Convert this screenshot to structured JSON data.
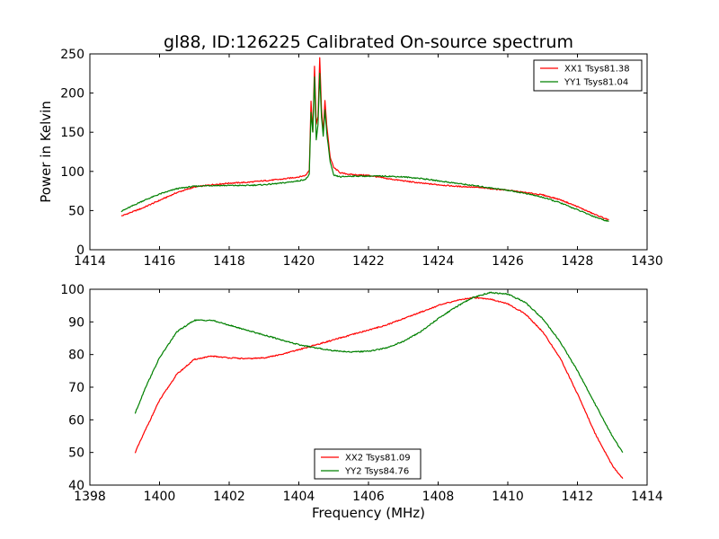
{
  "title": "gl88, ID:126225 Calibrated On-source spectrum",
  "ylabel_top": "Power in Kelvin",
  "xlabel_bottom": "Frequency (MHz)",
  "colors": {
    "red": "#ff0000",
    "green": "#008000",
    "axes": "#000000",
    "background": "#ffffff"
  },
  "chart_data": [
    {
      "type": "line",
      "title": "gl88, ID:126225 Calibrated On-source spectrum",
      "xlabel": "",
      "ylabel": "Power in Kelvin",
      "xlim": [
        1414,
        1430
      ],
      "ylim": [
        0,
        250
      ],
      "xticks": [
        "1414",
        "1416",
        "1418",
        "1420",
        "1422",
        "1424",
        "1426",
        "1428",
        "1430"
      ],
      "yticks": [
        "0",
        "50",
        "100",
        "150",
        "200",
        "250"
      ],
      "grid": false,
      "legend": "top-right",
      "series": [
        {
          "name": "XX1 Tsys81.38",
          "color": "#ff0000",
          "x": [
            1414.9,
            1415.5,
            1416.0,
            1416.5,
            1417.0,
            1417.5,
            1418.0,
            1418.5,
            1419.0,
            1419.5,
            1420.0,
            1420.2,
            1420.3,
            1420.35,
            1420.4,
            1420.45,
            1420.5,
            1420.55,
            1420.6,
            1420.65,
            1420.7,
            1420.75,
            1420.8,
            1420.9,
            1421.0,
            1421.2,
            1421.5,
            1422.0,
            1422.5,
            1423.0,
            1423.5,
            1424.0,
            1424.5,
            1425.0,
            1425.5,
            1426.0,
            1426.5,
            1427.0,
            1427.5,
            1428.0,
            1428.5,
            1428.9
          ],
          "y": [
            43,
            53,
            63,
            73,
            80,
            83,
            85,
            86,
            88,
            90,
            93,
            95,
            102,
            190,
            150,
            235,
            160,
            170,
            245,
            180,
            150,
            190,
            160,
            118,
            105,
            98,
            96,
            95,
            91,
            88,
            85,
            83,
            81,
            80,
            78,
            76,
            73,
            70,
            64,
            55,
            45,
            38
          ]
        },
        {
          "name": "YY1 Tsys81.04",
          "color": "#008000",
          "x": [
            1414.9,
            1415.5,
            1416.0,
            1416.5,
            1417.0,
            1417.5,
            1418.0,
            1418.5,
            1419.0,
            1419.5,
            1420.0,
            1420.2,
            1420.3,
            1420.35,
            1420.4,
            1420.45,
            1420.5,
            1420.55,
            1420.6,
            1420.65,
            1420.7,
            1420.75,
            1420.8,
            1420.9,
            1421.0,
            1421.2,
            1421.5,
            1422.0,
            1422.5,
            1423.0,
            1423.5,
            1424.0,
            1424.5,
            1425.0,
            1425.5,
            1426.0,
            1426.5,
            1427.0,
            1427.5,
            1428.0,
            1428.5,
            1428.9
          ],
          "y": [
            49,
            62,
            71,
            78,
            81,
            82,
            82,
            82,
            83,
            85,
            88,
            90,
            96,
            175,
            150,
            220,
            140,
            160,
            225,
            170,
            145,
            178,
            150,
            112,
            95,
            93,
            94,
            94,
            94,
            93,
            91,
            88,
            85,
            82,
            79,
            76,
            72,
            67,
            60,
            51,
            42,
            36
          ]
        }
      ]
    },
    {
      "type": "line",
      "title": "",
      "xlabel": "Frequency (MHz)",
      "ylabel": "",
      "xlim": [
        1398,
        1414
      ],
      "ylim": [
        40,
        100
      ],
      "xticks": [
        "1398",
        "1400",
        "1402",
        "1404",
        "1406",
        "1408",
        "1410",
        "1412",
        "1414"
      ],
      "yticks": [
        "40",
        "50",
        "60",
        "70",
        "80",
        "90",
        "100"
      ],
      "grid": false,
      "legend": "bottom-center",
      "series": [
        {
          "name": "XX2 Tsys81.09",
          "color": "#ff0000",
          "x": [
            1399.3,
            1399.6,
            1400.0,
            1400.5,
            1401.0,
            1401.5,
            1402.0,
            1402.5,
            1403.0,
            1403.5,
            1404.0,
            1404.5,
            1405.0,
            1405.5,
            1406.0,
            1406.5,
            1407.0,
            1407.5,
            1408.0,
            1408.5,
            1409.0,
            1409.5,
            1410.0,
            1410.5,
            1411.0,
            1411.5,
            1412.0,
            1412.5,
            1413.0,
            1413.3
          ],
          "y": [
            50,
            57,
            66,
            74,
            78.5,
            79.5,
            79,
            78.7,
            79,
            80,
            81.5,
            83,
            84.5,
            86,
            87.5,
            89,
            91,
            93,
            95,
            96.5,
            97.5,
            97,
            95.5,
            92.5,
            87,
            79,
            68,
            56,
            46,
            42
          ]
        },
        {
          "name": "YY2 Tsys84.76",
          "color": "#008000",
          "x": [
            1399.3,
            1399.6,
            1400.0,
            1400.5,
            1401.0,
            1401.5,
            1402.0,
            1402.5,
            1403.0,
            1403.5,
            1404.0,
            1404.5,
            1405.0,
            1405.5,
            1406.0,
            1406.5,
            1407.0,
            1407.5,
            1408.0,
            1408.5,
            1409.0,
            1409.5,
            1410.0,
            1410.5,
            1411.0,
            1411.5,
            1412.0,
            1412.5,
            1413.0,
            1413.3
          ],
          "y": [
            62,
            70,
            79,
            87,
            90.5,
            90.5,
            89,
            87.5,
            86,
            84.5,
            83,
            82,
            81.2,
            80.8,
            81,
            82,
            84,
            87,
            91,
            94.5,
            97.5,
            99,
            98.5,
            96,
            91,
            84,
            75,
            65,
            55,
            50
          ]
        }
      ]
    }
  ]
}
